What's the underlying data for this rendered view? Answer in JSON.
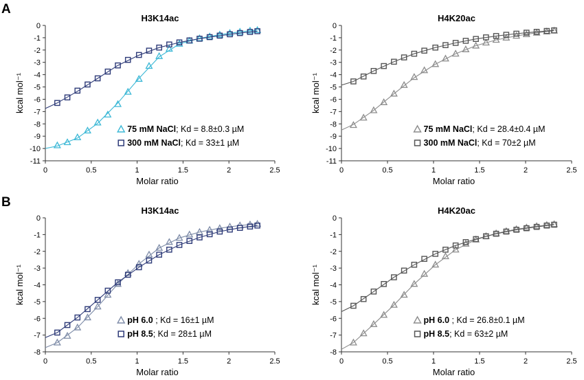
{
  "panel_letters": [
    "A",
    "B"
  ],
  "colors": {
    "cyan": "#3cb8d6",
    "navy": "#2e3b78",
    "gray": "#8c8c8c",
    "darkgray": "#555555",
    "slate": "#7e8ca8",
    "axis": "#333333"
  },
  "chart_data": [
    {
      "panel": "A",
      "type": "scatter",
      "title": "H3K14ac",
      "xlabel": "Molar ratio",
      "ylabel": "kcal mol⁻¹",
      "xlim": [
        0,
        2.5
      ],
      "ylim": [
        -11,
        0
      ],
      "xticks": [
        0,
        0.5,
        1,
        1.5,
        2,
        2.5
      ],
      "xtick_labels": [
        "0",
        "0.5",
        "1",
        "1.5",
        "2",
        "2.5"
      ],
      "yticks": [
        0,
        -1,
        -2,
        -3,
        -4,
        -5,
        -6,
        -7,
        -8,
        -9,
        -10,
        -11
      ],
      "ytick_labels": [
        "0",
        "-1",
        "-2",
        "-3",
        "-4",
        "-5",
        "-6",
        "-7",
        "-8",
        "-9",
        "-10",
        "-11"
      ],
      "legend_position": "bottom-right",
      "series": [
        {
          "marker": "triangle",
          "color": "cyan",
          "label_bold": "75 mM NaCl",
          "label_rest": "; Kd = 8.8±0.3 µM",
          "x": [
            0.13,
            0.24,
            0.35,
            0.46,
            0.57,
            0.68,
            0.79,
            0.9,
            1.02,
            1.13,
            1.24,
            1.35,
            1.46,
            1.57,
            1.68,
            1.79,
            1.9,
            2.01,
            2.12,
            2.23,
            2.31
          ],
          "y": [
            -9.75,
            -9.5,
            -9.1,
            -8.55,
            -7.9,
            -7.25,
            -6.4,
            -5.4,
            -4.35,
            -3.3,
            -2.5,
            -1.9,
            -1.5,
            -1.25,
            -1.05,
            -0.9,
            -0.75,
            -0.62,
            -0.52,
            -0.43,
            -0.38
          ],
          "fit_x": [
            0.0,
            0.13,
            0.35,
            0.57,
            0.79,
            1.02,
            1.24,
            1.46,
            1.68,
            1.9,
            2.12,
            2.31
          ],
          "fit_y": [
            -10.0,
            -9.8,
            -9.15,
            -7.95,
            -6.3,
            -4.3,
            -2.55,
            -1.5,
            -1.05,
            -0.75,
            -0.52,
            -0.38
          ]
        },
        {
          "marker": "square",
          "color": "navy",
          "label_bold": "300 mM NaCl",
          "label_rest": "; Kd = 33±1 µM",
          "x": [
            0.13,
            0.24,
            0.35,
            0.46,
            0.57,
            0.68,
            0.79,
            0.9,
            1.02,
            1.13,
            1.24,
            1.35,
            1.46,
            1.57,
            1.68,
            1.79,
            1.9,
            2.01,
            2.12,
            2.23,
            2.31
          ],
          "y": [
            -6.3,
            -5.85,
            -5.3,
            -4.8,
            -4.3,
            -3.75,
            -3.25,
            -2.8,
            -2.4,
            -2.05,
            -1.8,
            -1.55,
            -1.38,
            -1.22,
            -1.08,
            -0.95,
            -0.83,
            -0.72,
            -0.62,
            -0.53,
            -0.47
          ],
          "fit_x": [
            0.0,
            0.13,
            0.35,
            0.57,
            0.79,
            1.02,
            1.24,
            1.46,
            1.68,
            1.9,
            2.12,
            2.31
          ],
          "fit_y": [
            -6.75,
            -6.3,
            -5.35,
            -4.3,
            -3.25,
            -2.42,
            -1.8,
            -1.38,
            -1.08,
            -0.83,
            -0.62,
            -0.47
          ]
        }
      ]
    },
    {
      "panel": "A",
      "type": "scatter",
      "title": "H4K20ac",
      "xlabel": "Molar ratio",
      "ylabel": "kcal mol⁻¹",
      "xlim": [
        0,
        2.5
      ],
      "ylim": [
        -11,
        0
      ],
      "xticks": [
        0,
        0.5,
        1,
        1.5,
        2,
        2.5
      ],
      "xtick_labels": [
        "0",
        "0.5",
        "1",
        "1.5",
        "2",
        "2.5"
      ],
      "yticks": [
        0,
        -1,
        -2,
        -3,
        -4,
        -5,
        -6,
        -7,
        -8,
        -9,
        -10,
        -11
      ],
      "ytick_labels": [
        "0",
        "-1",
        "-2",
        "-3",
        "-4",
        "-5",
        "-6",
        "-7",
        "-8",
        "-9",
        "-10",
        "-11"
      ],
      "legend_position": "bottom-right",
      "series": [
        {
          "marker": "triangle",
          "color": "gray",
          "label_bold": "75 mM NaCl",
          "label_rest": "; Kd = 28.4±0.4 µM",
          "x": [
            0.13,
            0.24,
            0.35,
            0.46,
            0.57,
            0.68,
            0.79,
            0.9,
            1.02,
            1.13,
            1.24,
            1.35,
            1.46,
            1.57,
            1.68,
            1.79,
            1.9,
            2.01,
            2.12,
            2.23,
            2.31
          ],
          "y": [
            -8.1,
            -7.5,
            -6.9,
            -6.25,
            -5.55,
            -4.85,
            -4.2,
            -3.65,
            -3.15,
            -2.7,
            -2.3,
            -1.95,
            -1.65,
            -1.4,
            -1.18,
            -1.0,
            -0.85,
            -0.72,
            -0.6,
            -0.5,
            -0.43
          ],
          "fit_x": [
            0.0,
            0.13,
            0.35,
            0.57,
            0.79,
            1.02,
            1.24,
            1.46,
            1.68,
            1.9,
            2.12,
            2.31
          ],
          "fit_y": [
            -8.5,
            -8.05,
            -6.9,
            -5.55,
            -4.25,
            -3.15,
            -2.3,
            -1.65,
            -1.18,
            -0.85,
            -0.6,
            -0.43
          ]
        },
        {
          "marker": "square",
          "color": "darkgray",
          "label_bold": "300 mM NaCl",
          "label_rest": "; Kd = 70±2 µM",
          "x": [
            0.13,
            0.24,
            0.35,
            0.46,
            0.57,
            0.68,
            0.79,
            0.9,
            1.02,
            1.13,
            1.24,
            1.35,
            1.46,
            1.57,
            1.68,
            1.79,
            1.9,
            2.01,
            2.12,
            2.23,
            2.31
          ],
          "y": [
            -4.55,
            -4.15,
            -3.7,
            -3.3,
            -2.95,
            -2.6,
            -2.3,
            -2.05,
            -1.8,
            -1.6,
            -1.42,
            -1.25,
            -1.1,
            -0.97,
            -0.86,
            -0.76,
            -0.67,
            -0.59,
            -0.52,
            -0.45,
            -0.4
          ],
          "fit_x": [
            0.0,
            0.13,
            0.35,
            0.57,
            0.79,
            1.02,
            1.24,
            1.46,
            1.68,
            1.9,
            2.12,
            2.31
          ],
          "fit_y": [
            -4.85,
            -4.55,
            -3.7,
            -2.95,
            -2.3,
            -1.8,
            -1.42,
            -1.1,
            -0.86,
            -0.67,
            -0.52,
            -0.4
          ]
        }
      ]
    },
    {
      "panel": "B",
      "type": "scatter",
      "title": "H3K14ac",
      "xlabel": "Molar ratio",
      "ylabel": "kcal mol⁻¹",
      "xlim": [
        0,
        2.5
      ],
      "ylim": [
        -8,
        0
      ],
      "xticks": [
        0,
        0.5,
        1,
        1.5,
        2,
        2.5
      ],
      "xtick_labels": [
        "0",
        "0.5",
        "1",
        "1.5",
        "2",
        "2.5"
      ],
      "yticks": [
        0,
        -1,
        -2,
        -3,
        -4,
        -5,
        -6,
        -7,
        -8
      ],
      "ytick_labels": [
        "0",
        "-1",
        "-2",
        "-3",
        "-4",
        "-5",
        "-6",
        "-7",
        "-8"
      ],
      "legend_position": "bottom-right",
      "series": [
        {
          "marker": "triangle",
          "color": "slate",
          "label_bold": "pH 6.0",
          "label_rest": " ; Kd = 16±1 µM",
          "x": [
            0.13,
            0.24,
            0.35,
            0.46,
            0.57,
            0.68,
            0.79,
            0.9,
            1.02,
            1.13,
            1.24,
            1.35,
            1.46,
            1.57,
            1.68,
            1.79,
            1.9,
            2.01,
            2.12,
            2.23,
            2.31
          ],
          "y": [
            -7.45,
            -7.05,
            -6.55,
            -5.95,
            -5.3,
            -4.6,
            -3.95,
            -3.3,
            -2.75,
            -2.2,
            -1.8,
            -1.45,
            -1.2,
            -1.0,
            -0.85,
            -0.72,
            -0.62,
            -0.53,
            -0.46,
            -0.4,
            -0.36
          ],
          "fit_x": [
            0.0,
            0.13,
            0.35,
            0.57,
            0.79,
            1.02,
            1.24,
            1.46,
            1.68,
            1.9,
            2.12,
            2.31
          ],
          "fit_y": [
            -7.75,
            -7.45,
            -6.55,
            -5.3,
            -3.95,
            -2.75,
            -1.8,
            -1.2,
            -0.85,
            -0.62,
            -0.46,
            -0.36
          ]
        },
        {
          "marker": "square",
          "color": "navy",
          "label_bold": "pH 8.5",
          "label_rest": "; Kd = 28±1 µM",
          "x": [
            0.13,
            0.24,
            0.35,
            0.46,
            0.57,
            0.68,
            0.79,
            0.9,
            1.02,
            1.13,
            1.24,
            1.35,
            1.46,
            1.57,
            1.68,
            1.79,
            1.9,
            2.01,
            2.12,
            2.23,
            2.31
          ],
          "y": [
            -6.85,
            -6.4,
            -5.95,
            -5.45,
            -4.9,
            -4.35,
            -3.85,
            -3.4,
            -2.95,
            -2.55,
            -2.2,
            -1.9,
            -1.62,
            -1.38,
            -1.17,
            -0.98,
            -0.82,
            -0.7,
            -0.6,
            -0.52,
            -0.46
          ],
          "fit_x": [
            0.0,
            0.13,
            0.35,
            0.57,
            0.79,
            1.02,
            1.24,
            1.46,
            1.68,
            1.9,
            2.12,
            2.31
          ],
          "fit_y": [
            -7.15,
            -6.85,
            -5.95,
            -4.9,
            -3.85,
            -2.95,
            -2.2,
            -1.62,
            -1.17,
            -0.82,
            -0.6,
            -0.46
          ]
        }
      ]
    },
    {
      "panel": "B",
      "type": "scatter",
      "title": "H4K20ac",
      "xlabel": "Molar ratio",
      "ylabel": "kcal mol⁻¹",
      "xlim": [
        0,
        2.5
      ],
      "ylim": [
        -8,
        0
      ],
      "xticks": [
        0,
        0.5,
        1,
        1.5,
        2,
        2.5
      ],
      "xtick_labels": [
        "0",
        "0.5",
        "1",
        "1.5",
        "2",
        "2.5"
      ],
      "yticks": [
        0,
        -1,
        -2,
        -3,
        -4,
        -5,
        -6,
        -7,
        -8
      ],
      "ytick_labels": [
        "0",
        "-1",
        "-2",
        "-3",
        "-4",
        "-5",
        "-6",
        "-7",
        "-8"
      ],
      "legend_position": "bottom-right",
      "series": [
        {
          "marker": "triangle",
          "color": "gray",
          "label_bold": "pH 6.0",
          "label_rest": " ; Kd = 26.8±0.1 µM",
          "x": [
            0.13,
            0.24,
            0.35,
            0.46,
            0.57,
            0.68,
            0.79,
            0.9,
            1.02,
            1.13,
            1.24,
            1.35,
            1.46,
            1.57,
            1.68,
            1.79,
            1.9,
            2.01,
            2.12,
            2.23,
            2.31
          ],
          "y": [
            -7.45,
            -6.9,
            -6.35,
            -5.8,
            -5.2,
            -4.6,
            -3.95,
            -3.35,
            -2.8,
            -2.3,
            -1.9,
            -1.55,
            -1.3,
            -1.1,
            -0.93,
            -0.8,
            -0.68,
            -0.58,
            -0.5,
            -0.43,
            -0.38
          ],
          "fit_x": [
            0.0,
            0.13,
            0.35,
            0.57,
            0.79,
            1.02,
            1.24,
            1.46,
            1.68,
            1.9,
            2.12,
            2.31
          ],
          "fit_y": [
            -7.85,
            -7.45,
            -6.35,
            -5.2,
            -3.95,
            -2.8,
            -1.9,
            -1.3,
            -0.93,
            -0.68,
            -0.5,
            -0.38
          ]
        },
        {
          "marker": "square",
          "color": "darkgray",
          "label_bold": "pH 8.5",
          "label_rest": "; Kd = 63±2 µM",
          "x": [
            0.13,
            0.24,
            0.35,
            0.46,
            0.57,
            0.68,
            0.79,
            0.9,
            1.02,
            1.13,
            1.24,
            1.35,
            1.46,
            1.57,
            1.68,
            1.79,
            1.9,
            2.01,
            2.12,
            2.23,
            2.31
          ],
          "y": [
            -5.25,
            -4.85,
            -4.4,
            -3.95,
            -3.55,
            -3.15,
            -2.8,
            -2.45,
            -2.15,
            -1.9,
            -1.65,
            -1.45,
            -1.27,
            -1.1,
            -0.95,
            -0.82,
            -0.71,
            -0.62,
            -0.54,
            -0.46,
            -0.41
          ],
          "fit_x": [
            0.0,
            0.13,
            0.35,
            0.57,
            0.79,
            1.02,
            1.24,
            1.46,
            1.68,
            1.9,
            2.12,
            2.31
          ],
          "fit_y": [
            -5.6,
            -5.25,
            -4.4,
            -3.55,
            -2.8,
            -2.15,
            -1.65,
            -1.27,
            -0.95,
            -0.71,
            -0.54,
            -0.41
          ]
        }
      ]
    }
  ]
}
